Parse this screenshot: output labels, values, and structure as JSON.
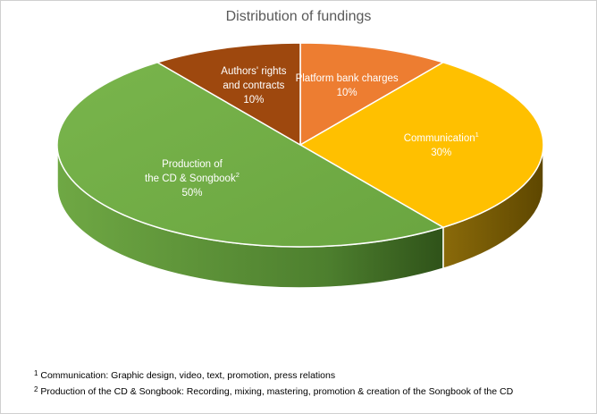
{
  "chart_data": {
    "type": "pie",
    "title": "Distribution of fundings",
    "slices": [
      {
        "label": "Platform bank charges",
        "value": 10,
        "value_label": "10%",
        "color": "#ed7d31"
      },
      {
        "label": "Communication",
        "sup": "1",
        "value": 30,
        "value_label": "30%",
        "color": "#ffc000"
      },
      {
        "label": "Production of the CD & Songbook",
        "sup": "2",
        "value": 50,
        "value_label": "50%",
        "color": "#70ad47"
      },
      {
        "label": "Authors' rights and contracts",
        "value": 10,
        "value_label": "10%",
        "color": "#9e480e"
      }
    ],
    "style": "3d"
  },
  "footnotes": [
    {
      "num": "1",
      "text": "Communication: Graphic design, video, text, promotion, press relations"
    },
    {
      "num": "2",
      "text": "Production of the CD & Songbook: Recording, mixing, mastering, promotion & creation of the Songbook of the CD"
    }
  ]
}
